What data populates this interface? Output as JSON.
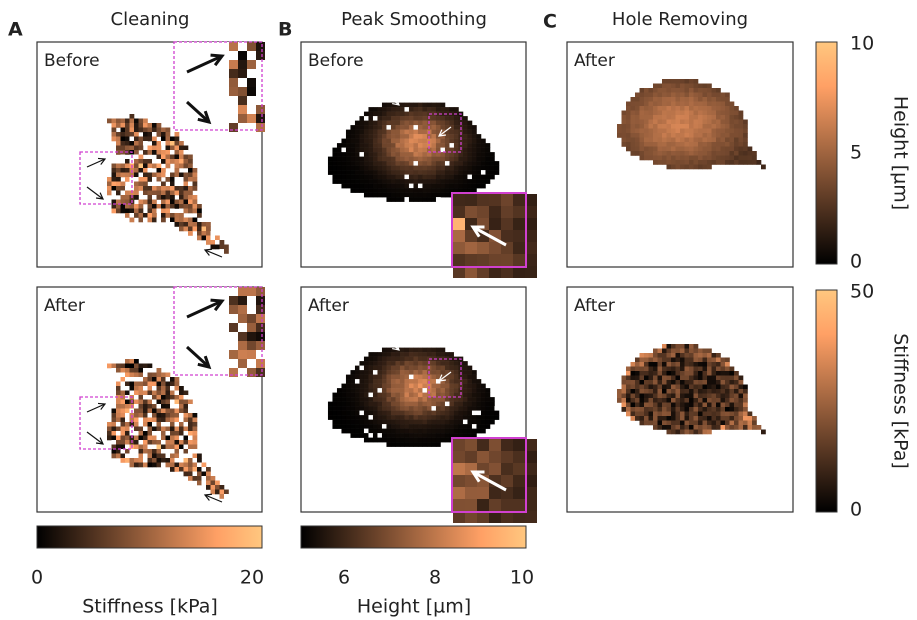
{
  "panels": [
    {
      "letter": "A",
      "title": "Cleaning",
      "images": [
        {
          "label": "Before"
        },
        {
          "label": "After"
        }
      ],
      "colorbar": {
        "ticks": [
          0,
          20
        ],
        "label": "Stiffness [kPa]"
      }
    },
    {
      "letter": "B",
      "title": "Peak Smoothing",
      "images": [
        {
          "label": "Before"
        },
        {
          "label": "After"
        }
      ],
      "colorbar": {
        "ticks": [
          6,
          8,
          10
        ],
        "label": "Height [µm]"
      }
    },
    {
      "letter": "C",
      "title": "Hole Removing",
      "images": [
        {
          "label": "After"
        },
        {
          "label": "After"
        }
      ],
      "colorbars": [
        {
          "ticks": [
            10,
            5,
            0
          ],
          "label": "Height [µm]"
        },
        {
          "ticks": [
            50,
            0
          ],
          "label": "Stiffness [kPa]"
        }
      ]
    }
  ]
}
